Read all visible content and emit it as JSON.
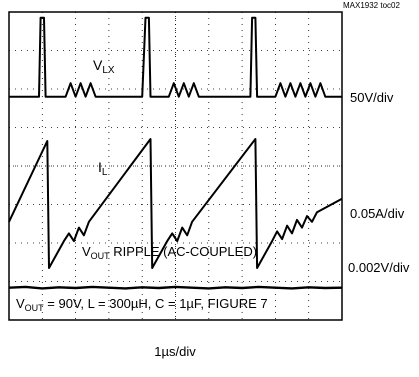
{
  "figure_id": "MAX1932 toc02",
  "chart_data": {
    "type": "line",
    "title": "",
    "xlabel": "1µs/div",
    "ylabel": "",
    "grid": true,
    "divisions": {
      "x": 10,
      "y": 8
    },
    "x_unit": "div",
    "x_range_div": [
      0,
      10
    ],
    "series": [
      {
        "name": "VLX",
        "scale": "50V/div",
        "points": [
          [
            0,
            5.8
          ],
          [
            0.9,
            5.8
          ],
          [
            0.95,
            7.85
          ],
          [
            1.05,
            7.85
          ],
          [
            1.1,
            5.8
          ],
          [
            1.7,
            5.8
          ],
          [
            1.85,
            6.15
          ],
          [
            2.0,
            5.8
          ],
          [
            2.15,
            6.15
          ],
          [
            2.3,
            5.8
          ],
          [
            2.45,
            6.15
          ],
          [
            2.6,
            5.8
          ],
          [
            4.0,
            5.8
          ],
          [
            4.1,
            7.85
          ],
          [
            4.2,
            7.85
          ],
          [
            4.25,
            5.8
          ],
          [
            4.8,
            5.8
          ],
          [
            4.95,
            6.15
          ],
          [
            5.1,
            5.8
          ],
          [
            5.25,
            6.15
          ],
          [
            5.4,
            5.8
          ],
          [
            5.55,
            6.15
          ],
          [
            5.7,
            5.8
          ],
          [
            7.25,
            5.8
          ],
          [
            7.3,
            7.85
          ],
          [
            7.4,
            7.85
          ],
          [
            7.45,
            5.8
          ],
          [
            8.0,
            5.8
          ],
          [
            8.15,
            6.15
          ],
          [
            8.3,
            5.8
          ],
          [
            8.45,
            6.15
          ],
          [
            8.6,
            5.8
          ],
          [
            8.75,
            6.15
          ],
          [
            8.9,
            5.8
          ],
          [
            9.05,
            6.15
          ],
          [
            9.2,
            5.8
          ],
          [
            9.35,
            6.15
          ],
          [
            9.5,
            5.8
          ],
          [
            10,
            5.8
          ]
        ]
      },
      {
        "name": "IL",
        "scale": "0.05A/div",
        "points": [
          [
            0,
            2.55
          ],
          [
            1.15,
            4.65
          ],
          [
            1.2,
            1.35
          ],
          [
            1.65,
            2.05
          ],
          [
            1.8,
            2.25
          ],
          [
            1.95,
            2.05
          ],
          [
            2.1,
            2.4
          ],
          [
            2.25,
            2.2
          ],
          [
            2.4,
            2.55
          ],
          [
            4.25,
            4.7
          ],
          [
            4.3,
            1.35
          ],
          [
            4.75,
            2.05
          ],
          [
            4.9,
            2.25
          ],
          [
            5.05,
            2.05
          ],
          [
            5.2,
            2.4
          ],
          [
            5.35,
            2.2
          ],
          [
            5.5,
            2.55
          ],
          [
            7.4,
            4.7
          ],
          [
            7.45,
            1.35
          ],
          [
            7.9,
            2.05
          ],
          [
            8.05,
            2.3
          ],
          [
            8.2,
            2.1
          ],
          [
            8.35,
            2.45
          ],
          [
            8.5,
            2.25
          ],
          [
            8.65,
            2.6
          ],
          [
            8.8,
            2.4
          ],
          [
            8.95,
            2.7
          ],
          [
            9.1,
            2.55
          ],
          [
            9.25,
            2.8
          ],
          [
            10,
            3.15
          ]
        ]
      },
      {
        "name": "VOUT RIPPLE (AC-COUPLED)",
        "scale": "0.002V/div",
        "points": [
          [
            0,
            0.84
          ],
          [
            0.5,
            0.86
          ],
          [
            1.0,
            0.82
          ],
          [
            1.5,
            0.85
          ],
          [
            2.0,
            0.83
          ],
          [
            2.5,
            0.86
          ],
          [
            3.0,
            0.84
          ],
          [
            3.5,
            0.82
          ],
          [
            4.0,
            0.85
          ],
          [
            4.5,
            0.83
          ],
          [
            5.0,
            0.86
          ],
          [
            5.5,
            0.84
          ],
          [
            6.0,
            0.82
          ],
          [
            6.5,
            0.85
          ],
          [
            7.0,
            0.83
          ],
          [
            7.5,
            0.86
          ],
          [
            8.0,
            0.84
          ],
          [
            8.5,
            0.82
          ],
          [
            9.0,
            0.85
          ],
          [
            9.5,
            0.83
          ],
          [
            10,
            0.84
          ]
        ]
      }
    ],
    "trace_labels": [
      {
        "main": "V",
        "sub": "LX"
      },
      {
        "main": "I",
        "sub": "L"
      },
      {
        "main": "V",
        "sub": "OUT",
        "rest": " RIPPLE (AC-COUPLED)"
      }
    ],
    "conditions": {
      "a": "V",
      "sub": "OUT",
      "b": " = 90V, L = 300µH, C = 1µF, FIGURE 7"
    }
  }
}
